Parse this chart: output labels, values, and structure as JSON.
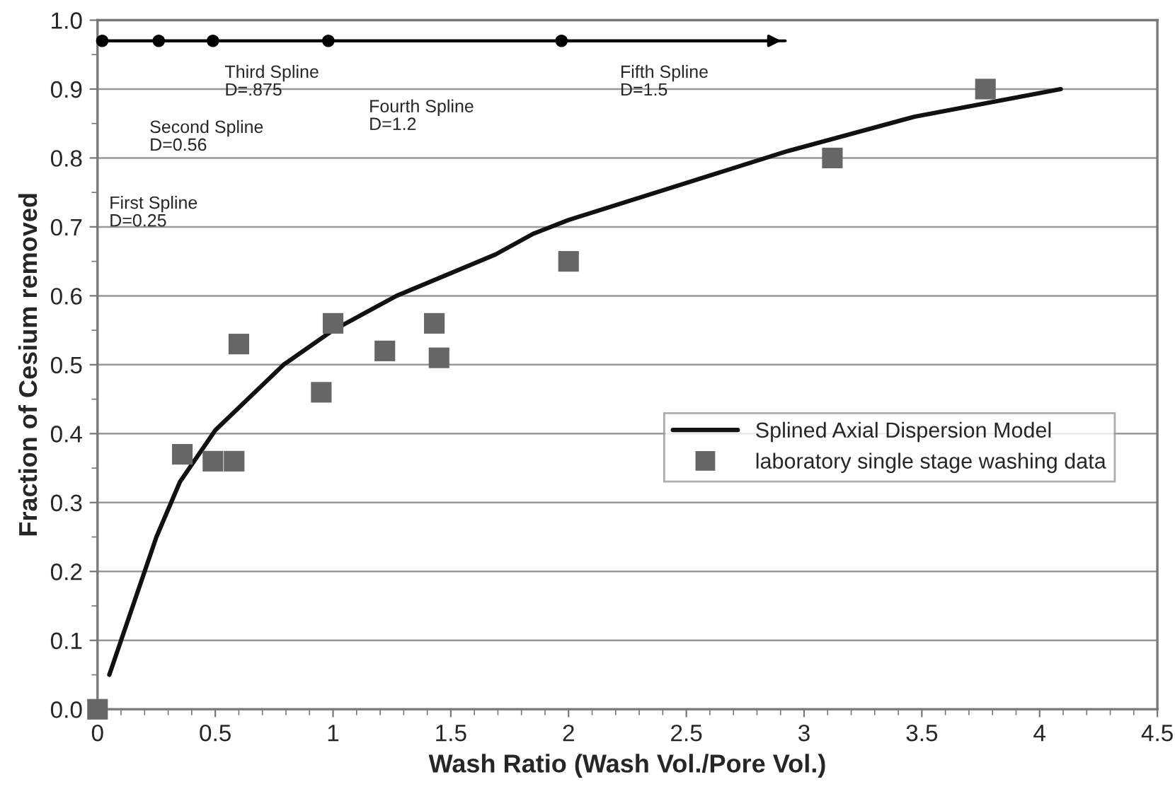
{
  "chart_data": {
    "type": "scatter",
    "xlabel": "Wash Ratio (Wash Vol./Pore Vol.)",
    "ylabel": "Fraction of Cesium removed",
    "series": [
      {
        "name": "Splined Axial Dispersion Model",
        "type": "line",
        "color": "#111111",
        "marker": "none",
        "x": [
          0.05,
          0.2,
          0.25,
          0.35,
          0.5,
          0.79,
          1.0,
          1.27,
          1.69,
          1.85,
          2.0,
          2.93,
          3.47,
          4.09
        ],
        "values": [
          0.05,
          0.2,
          0.25,
          0.33,
          0.405,
          0.5,
          0.55,
          0.6,
          0.66,
          0.69,
          0.71,
          0.81,
          0.86,
          0.9
        ]
      },
      {
        "name": "laboratory single stage washing data",
        "color": "#666666",
        "marker": "square",
        "x": [
          0.0,
          0.36,
          0.49,
          0.58,
          0.6,
          0.95,
          1.0,
          1.22,
          1.43,
          1.45,
          2.0,
          3.12,
          3.77
        ],
        "values": [
          0.0,
          0.37,
          0.36,
          0.36,
          0.53,
          0.46,
          0.56,
          0.52,
          0.56,
          0.51,
          0.65,
          0.8,
          0.9
        ]
      },
      {
        "type": "line",
        "color": "#000000",
        "marker": "none",
        "x": [
          0.02,
          2.92
        ],
        "values": [
          0.97,
          0.97
        ]
      },
      {
        "color": "#000000",
        "marker": "circle",
        "x": [
          0.02,
          0.26,
          0.49,
          0.98,
          1.97
        ],
        "values": [
          0.97,
          0.97,
          0.97,
          0.97,
          0.97
        ]
      }
    ],
    "annotations": [
      "First Spline\nD=0.25",
      "Second Spline\nD=0.56",
      "Third Spline\nD=.875",
      "Fourth Spline\nD=1.2",
      "Fifth Spline\nD=1.5"
    ],
    "xlim": [
      0,
      4.5
    ],
    "xticks": [
      {
        "value": 0,
        "label": "0"
      },
      0.5,
      {
        "value": 1,
        "label": "1"
      },
      1.5,
      {
        "value": 2,
        "label": "2"
      },
      2.5,
      {
        "value": 3,
        "label": "3"
      },
      3.5,
      {
        "value": 4,
        "label": "4"
      },
      4.5
    ],
    "ylim": [
      0,
      1.0
    ],
    "yticks": [
      {
        "value": 0,
        "label": "0.0"
      },
      0.1,
      0.2,
      0.3,
      0.4,
      0.5,
      0.6,
      0.7,
      0.8,
      0.9,
      {
        "value": 1.0,
        "label": "1.0"
      }
    ],
    "grid": "y",
    "legend": "right"
  }
}
